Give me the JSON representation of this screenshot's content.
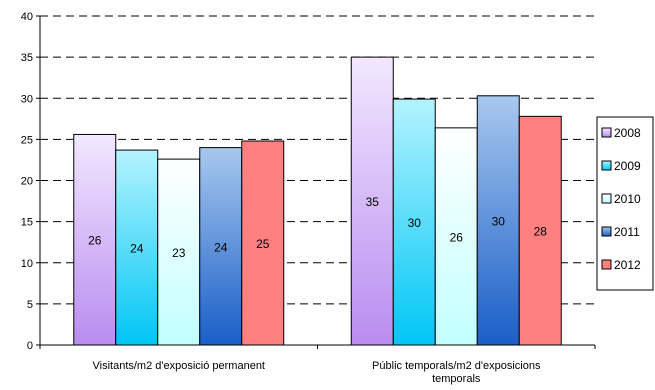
{
  "chart_data": {
    "type": "bar",
    "title": "",
    "xlabel": "",
    "ylabel": "",
    "ylim": [
      0,
      40
    ],
    "yticks": [
      0,
      5,
      10,
      15,
      20,
      25,
      30,
      35,
      40
    ],
    "grid": true,
    "legend_position": "right",
    "categories": [
      [
        "Visitants/m2 d'exposició permanent"
      ],
      [
        "Públic temporals/m2 d'exposicions",
        "temporals"
      ]
    ],
    "series": [
      {
        "name": "2008",
        "values": [
          25.6,
          35.0
        ],
        "labels": [
          "26",
          "35"
        ],
        "colors": [
          "#f2e8ff",
          "#b98cf0"
        ]
      },
      {
        "name": "2009",
        "values": [
          23.7,
          29.9
        ],
        "labels": [
          "24",
          "30"
        ],
        "colors": [
          "#b4f3ff",
          "#00c6f5"
        ]
      },
      {
        "name": "2010",
        "values": [
          22.6,
          26.4
        ],
        "labels": [
          "23",
          "26"
        ],
        "colors": [
          "#ffffff",
          "#c2ffff"
        ]
      },
      {
        "name": "2011",
        "values": [
          24.0,
          30.3
        ],
        "labels": [
          "24",
          "30"
        ],
        "colors": [
          "#a8c8ee",
          "#1a5ec8"
        ]
      },
      {
        "name": "2012",
        "values": [
          24.8,
          27.8
        ],
        "labels": [
          "25",
          "28"
        ],
        "colors": [
          "#ff8080",
          "#ff8080"
        ]
      }
    ]
  }
}
